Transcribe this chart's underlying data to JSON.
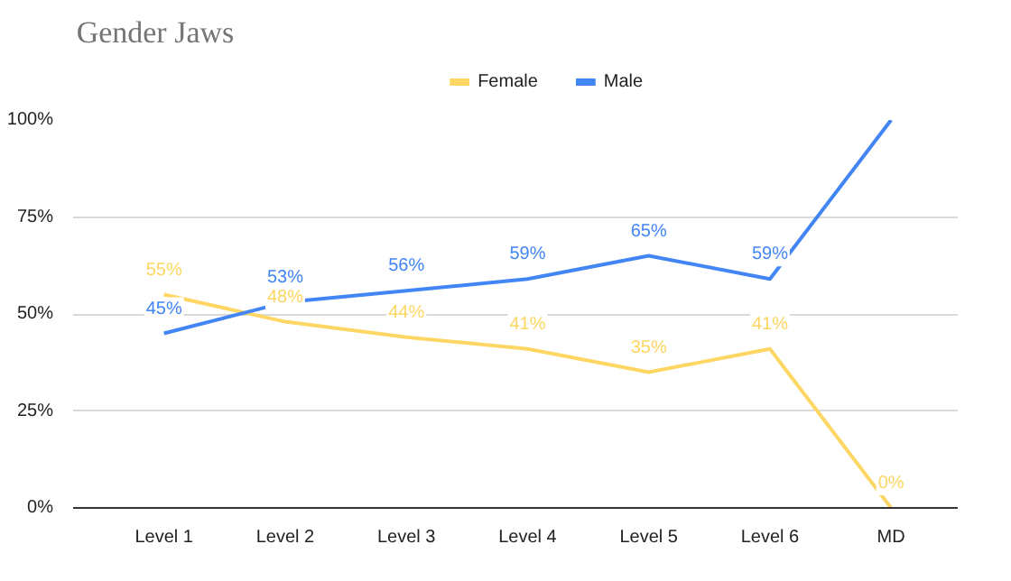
{
  "chart_data": {
    "type": "line",
    "title": "Gender Jaws",
    "categories": [
      "Level 1",
      "Level 2",
      "Level 3",
      "Level 4",
      "Level 5",
      "Level 6",
      "MD"
    ],
    "series": [
      {
        "name": "Female",
        "color": "#fdd663",
        "values": [
          55,
          48,
          44,
          41,
          35,
          41,
          0
        ],
        "value_labels": [
          "55%",
          "48%",
          "44%",
          "41%",
          "35%",
          "41%",
          "0%"
        ]
      },
      {
        "name": "Male",
        "color": "#4285f4",
        "values": [
          45,
          53,
          56,
          59,
          65,
          59,
          100
        ],
        "value_labels": [
          "45%",
          "53%",
          "56%",
          "59%",
          "65%",
          "59%",
          null
        ]
      }
    ],
    "ylim": [
      0,
      100
    ],
    "yticks": [
      {
        "value": 0,
        "label": "0%"
      },
      {
        "value": 25,
        "label": "25%"
      },
      {
        "value": 50,
        "label": "50%"
      },
      {
        "value": 75,
        "label": "75%"
      },
      {
        "value": 100,
        "label": "100%"
      }
    ],
    "grid": "y",
    "legend": "top",
    "marker": "none",
    "line_style": "solid"
  }
}
